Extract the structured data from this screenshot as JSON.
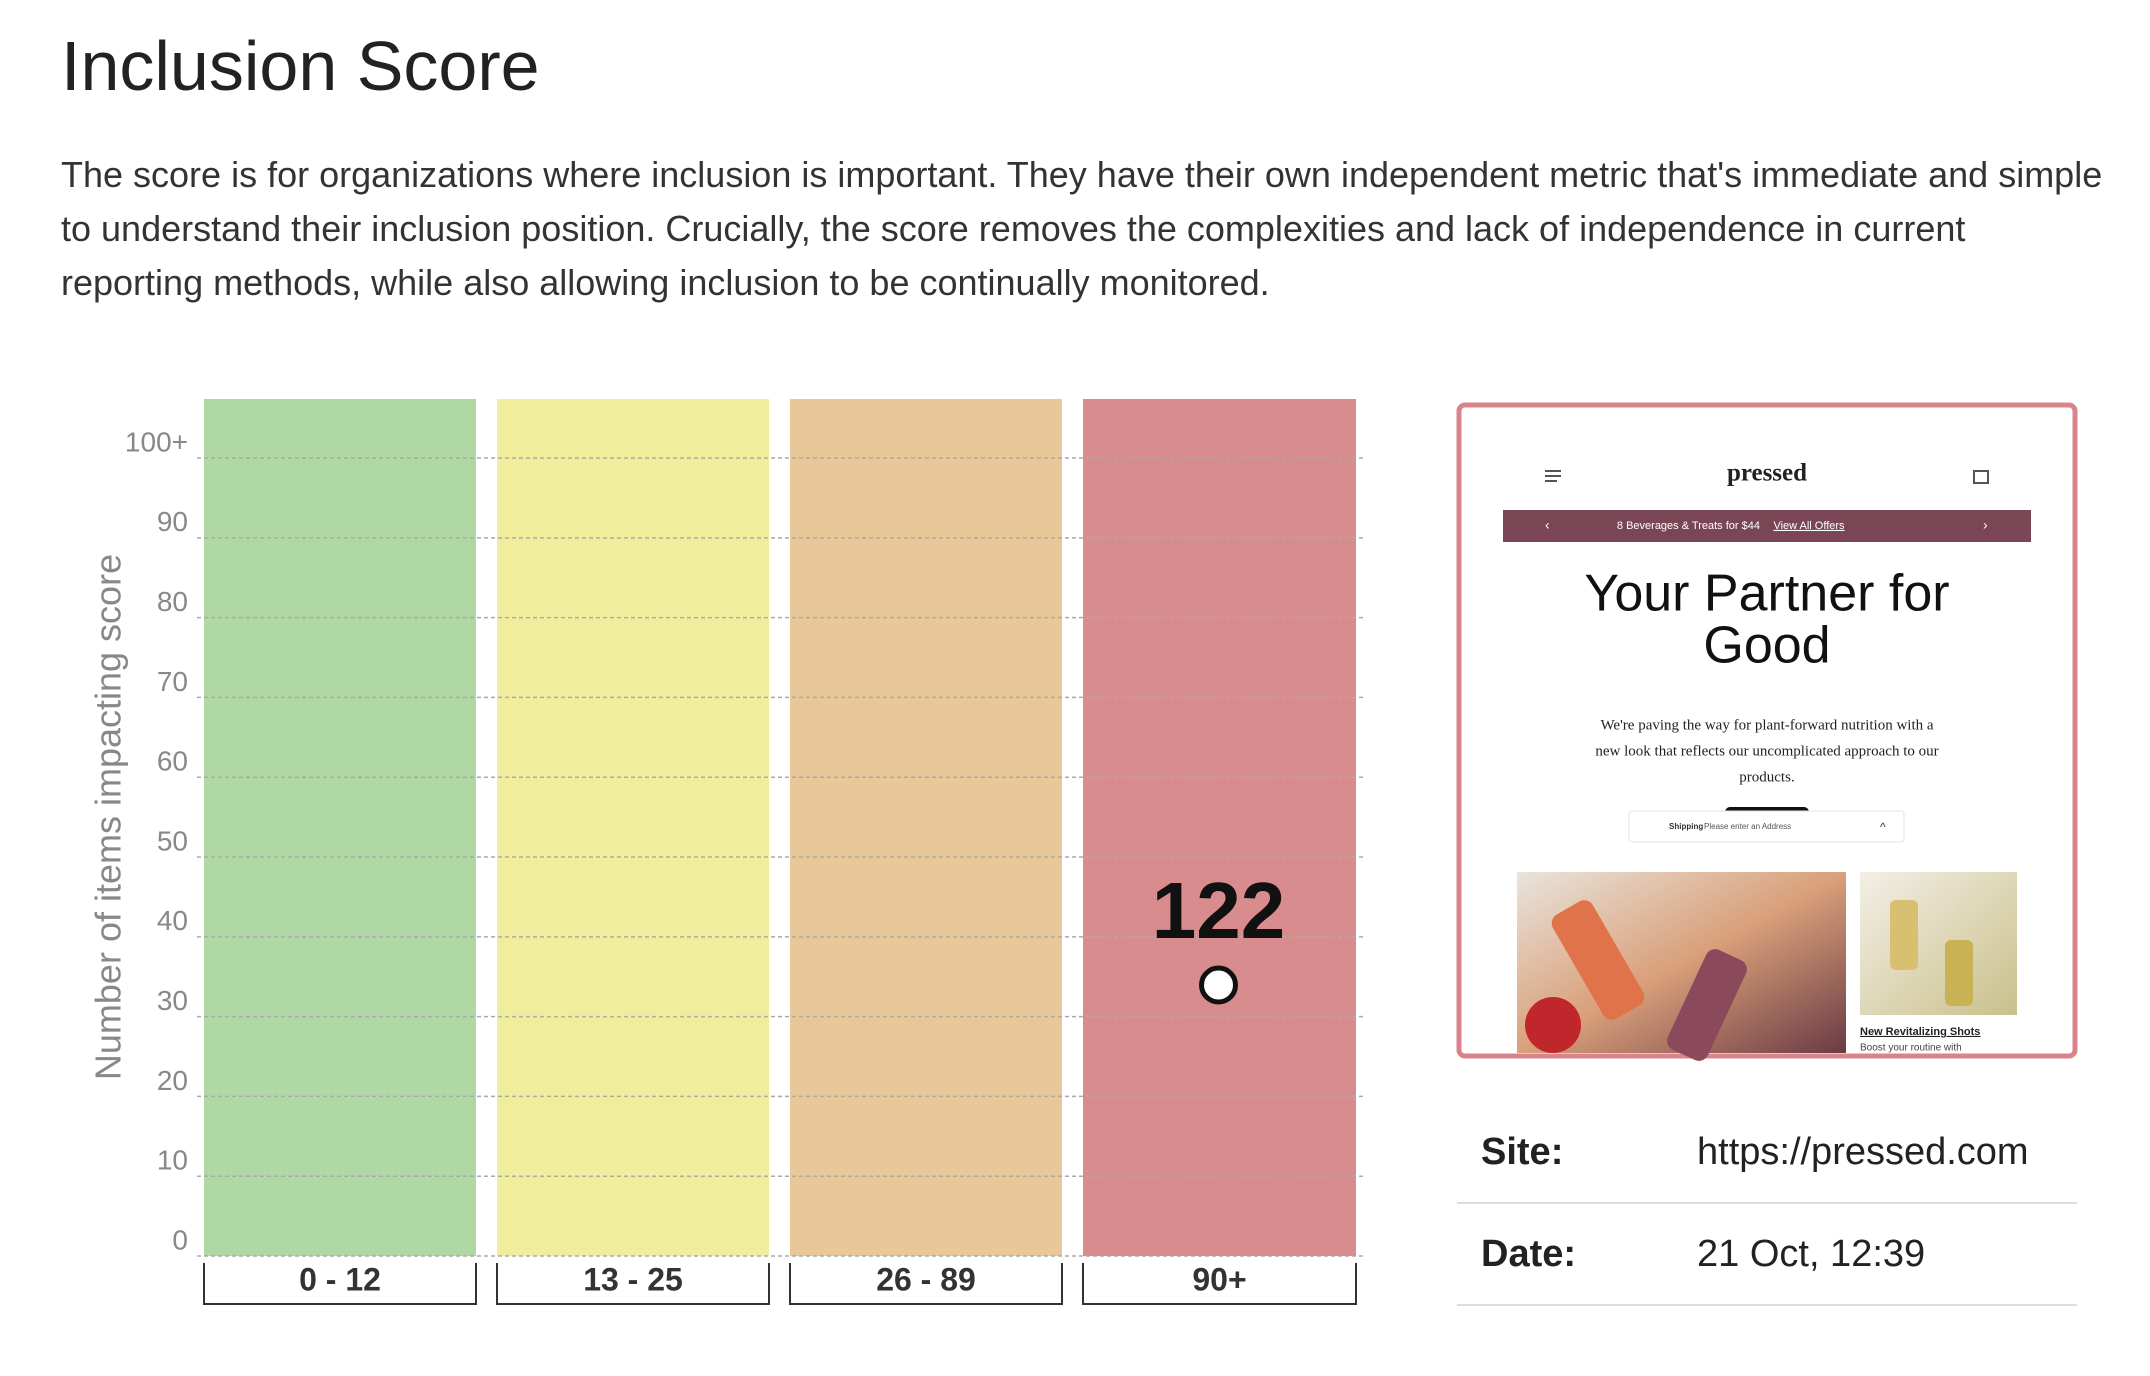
{
  "header": {
    "title": "Inclusion Score",
    "description": "The score is for organizations where inclusion is important. They have their own independent metric that's immediate and simple to understand their inclusion position. Crucially, the score removes the complexities and lack of independence in current reporting methods, while also allowing inclusion to be continually monitored."
  },
  "chart_data": {
    "type": "score_band",
    "y_label": "Number of items impacting score",
    "categories": [
      "0 - 12",
      "13 - 25",
      "26 - 89",
      "90+"
    ],
    "colors": [
      "#b0d8a4",
      "#f0ee9c",
      "#e8c898",
      "#d98c8e"
    ],
    "ylim": [
      0,
      107.4
    ],
    "yticks": [
      0,
      10,
      20,
      30,
      40,
      50,
      60,
      70,
      80,
      90,
      {
        "value": 100,
        "label": "100+"
      }
    ],
    "grid": true,
    "score": 122
  },
  "preview": {
    "logo": "pressed",
    "banner": "8 Beverages & Treats for $44",
    "banner_link": "View All Offers",
    "heading": [
      "Your Partner for",
      "Good"
    ],
    "text": [
      "We're paving the way for plant-forward nutrition with a",
      "new look that reflects our uncomplicated approach to our",
      "products."
    ],
    "shipping_label": "Shipping",
    "shipping_text": "Please enter an Address",
    "card_title": "New Revitalizing Shots",
    "card_text": "Boost your routine with"
  },
  "details": {
    "rows": [
      [
        "Site:",
        "https://pressed.com"
      ],
      [
        "Date:",
        "21 Oct, 12:39"
      ]
    ]
  }
}
